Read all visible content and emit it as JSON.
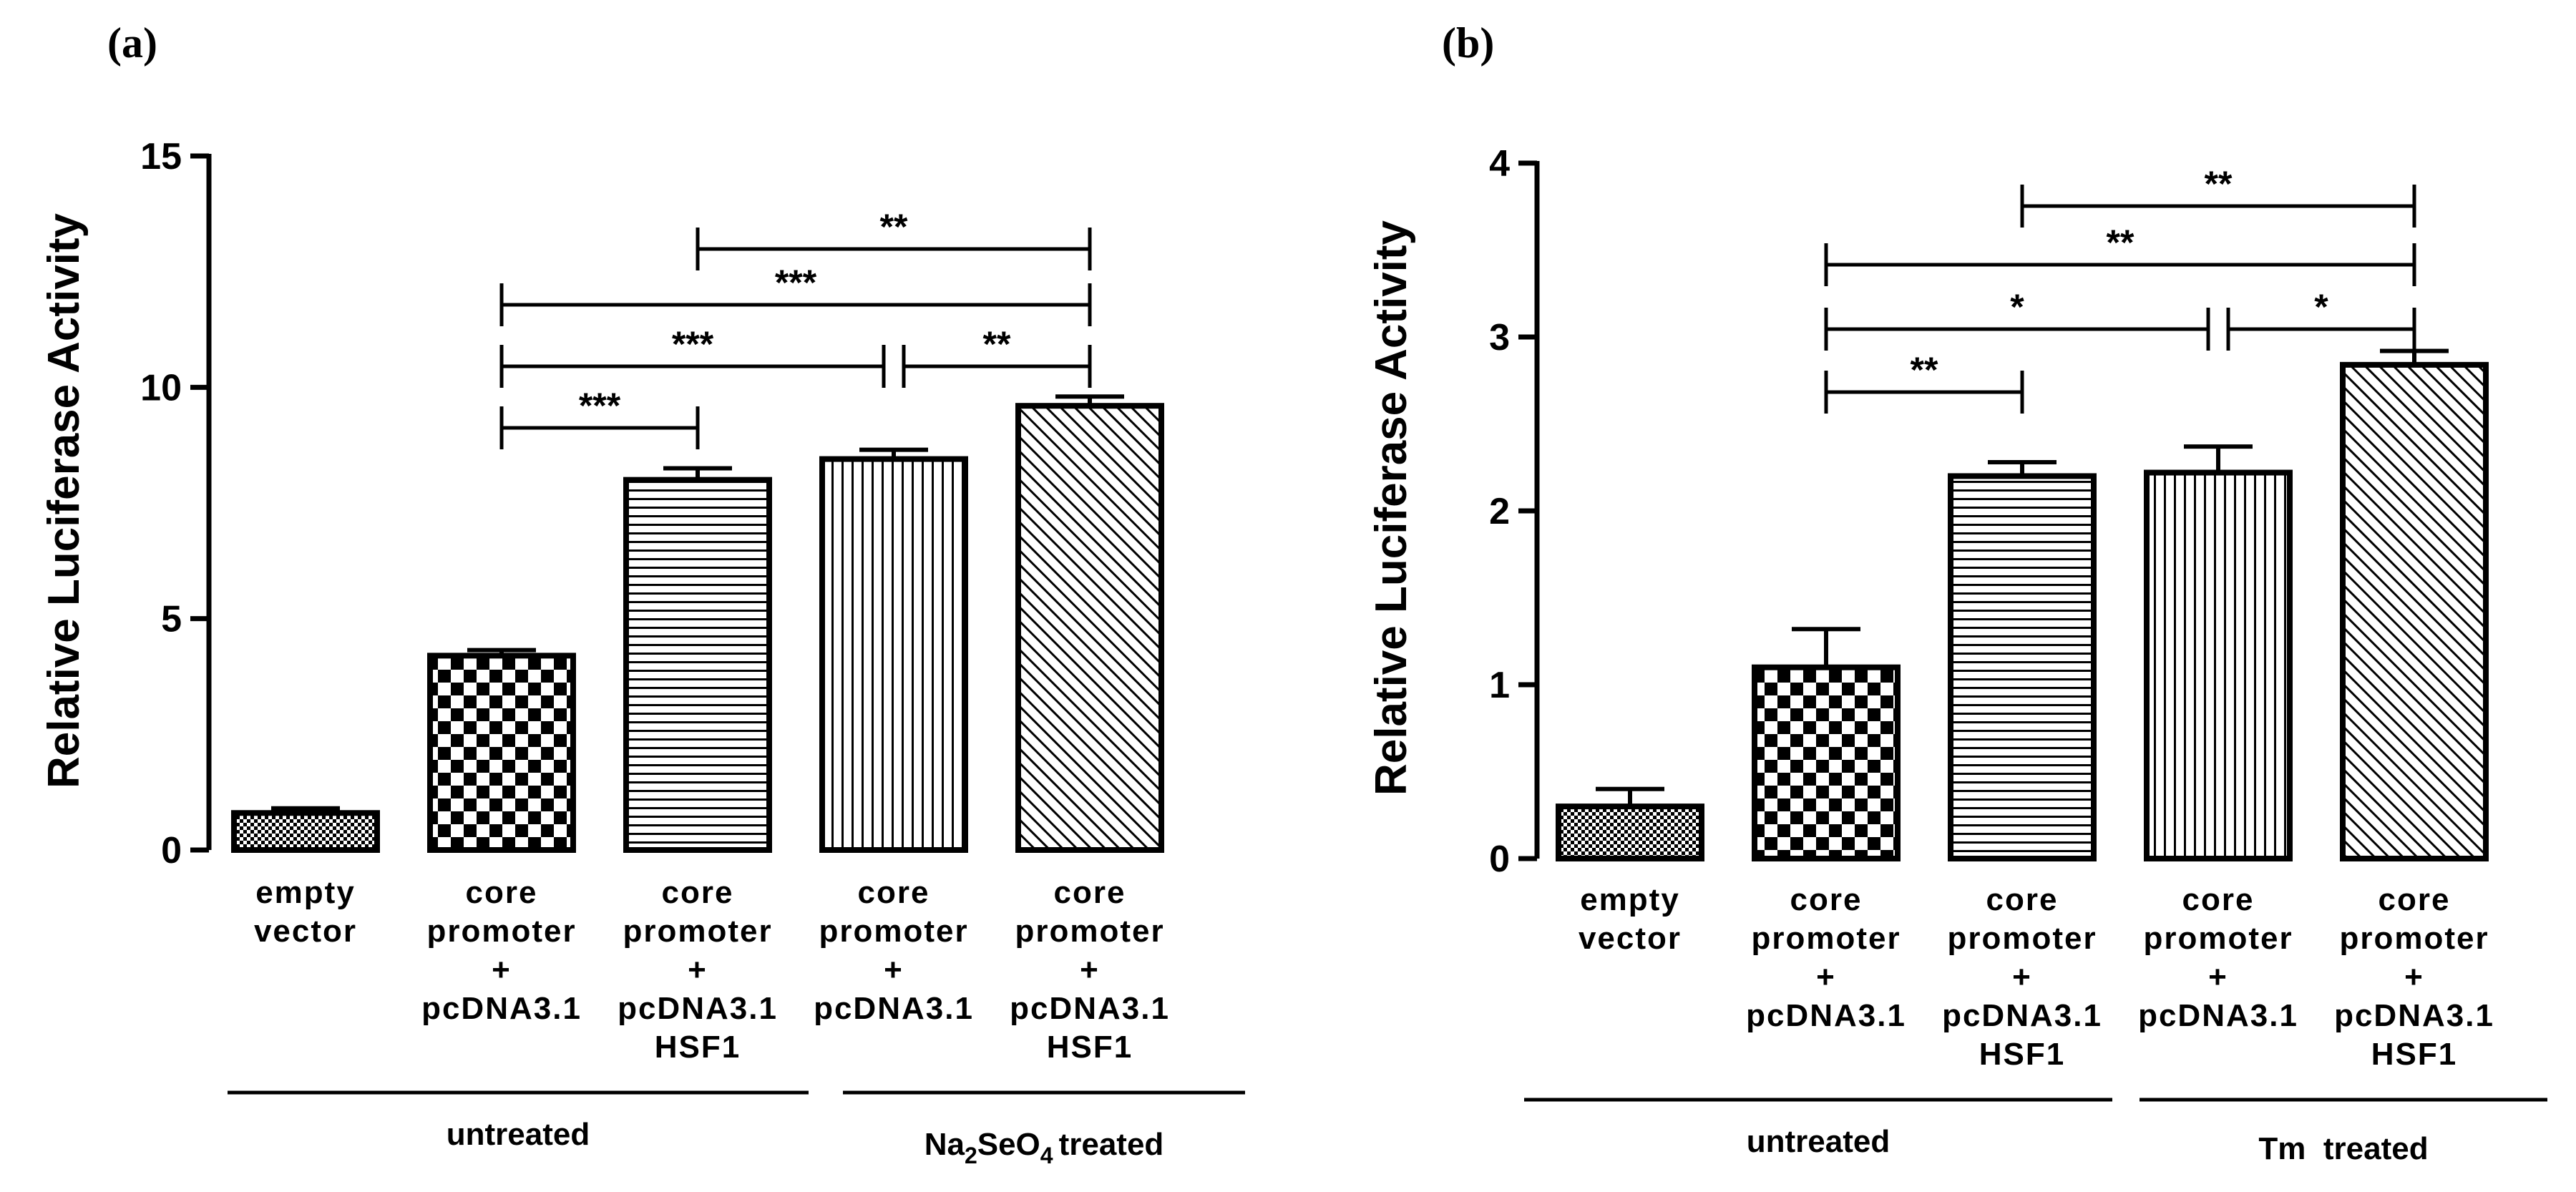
{
  "chart_data": [
    {
      "type": "bar",
      "panel_label": "(a)",
      "ylabel": "Relative Luciferase Activity",
      "ylim": [
        0,
        15
      ],
      "yticks": [
        0,
        5,
        10,
        15
      ],
      "categories": [
        [
          "empty",
          "vector"
        ],
        [
          "core",
          "promoter",
          "+",
          "pcDNA3.1"
        ],
        [
          "core",
          "promoter",
          "+",
          "pcDNA3.1",
          "HSF1"
        ],
        [
          "core",
          "promoter",
          "+",
          "pcDNA3.1"
        ],
        [
          "core",
          "promoter",
          "+",
          "pcDNA3.1",
          "HSF1"
        ]
      ],
      "values": [
        0.8,
        4.2,
        8.0,
        8.45,
        9.6
      ],
      "errors": [
        0.1,
        0.12,
        0.25,
        0.2,
        0.2
      ],
      "patterns": [
        "dots",
        "checker",
        "hlines",
        "vlines",
        "diag"
      ],
      "groups": [
        {
          "label": "untreated",
          "from": 0,
          "to": 2
        },
        {
          "label_main": "Na",
          "label_sub1": "2",
          "label_mid": "SeO",
          "label_sub2": "4",
          "label_end": "treated",
          "from": 3,
          "to": 4
        }
      ],
      "significance": [
        {
          "from": 1,
          "to": 2,
          "label": "***"
        },
        {
          "from": 1,
          "to": 3,
          "label": "***"
        },
        {
          "from": 3,
          "to": 4,
          "label": "**"
        },
        {
          "from": 1,
          "to": 4,
          "label": "***"
        },
        {
          "from": 2,
          "to": 4,
          "label": "**"
        }
      ]
    },
    {
      "type": "bar",
      "panel_label": "(b)",
      "ylabel": "Relative Luciferase Activity",
      "ylim": [
        0,
        4
      ],
      "yticks": [
        0,
        1,
        2,
        3,
        4
      ],
      "categories": [
        [
          "empty",
          "vector"
        ],
        [
          "core",
          "promoter",
          "+",
          "pcDNA3.1"
        ],
        [
          "core",
          "promoter",
          "+",
          "pcDNA3.1",
          "HSF1"
        ],
        [
          "core",
          "promoter",
          "+",
          "pcDNA3.1"
        ],
        [
          "core",
          "promoter",
          "+",
          "pcDNA3.1",
          "HSF1"
        ]
      ],
      "values": [
        0.3,
        1.1,
        2.2,
        2.22,
        2.84
      ],
      "errors": [
        0.1,
        0.22,
        0.08,
        0.15,
        0.08
      ],
      "patterns": [
        "dots",
        "checker",
        "hlines",
        "vlines",
        "diag"
      ],
      "groups": [
        {
          "label": "untreated",
          "from": 0,
          "to": 2
        },
        {
          "label": "Tm  treated",
          "from": 3,
          "to": 4
        }
      ],
      "significance": [
        {
          "from": 1,
          "to": 2,
          "label": "**"
        },
        {
          "from": 1,
          "to": 3,
          "label": "*"
        },
        {
          "from": 3,
          "to": 4,
          "label": "*"
        },
        {
          "from": 1,
          "to": 4,
          "label": "**"
        },
        {
          "from": 2,
          "to": 4,
          "label": "**"
        }
      ]
    }
  ]
}
